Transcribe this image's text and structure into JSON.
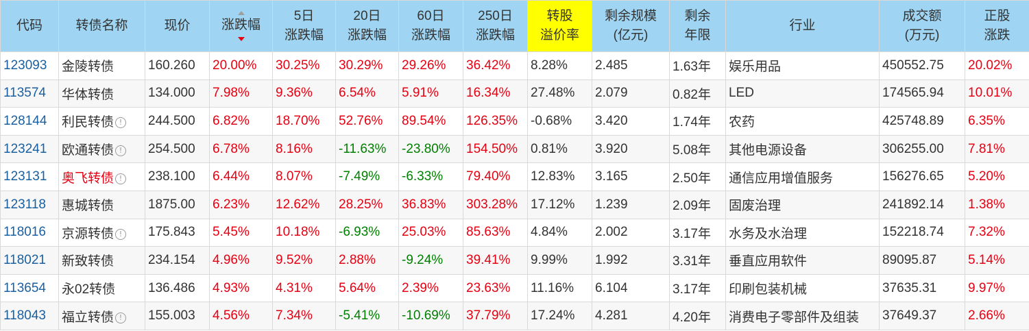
{
  "table": {
    "headers": [
      {
        "key": "code",
        "label": "代码"
      },
      {
        "key": "name",
        "label": "转债名称"
      },
      {
        "key": "price",
        "label": "现价"
      },
      {
        "key": "change",
        "label": "涨跌幅",
        "sorted": "desc"
      },
      {
        "key": "chg5",
        "label": "5日\n涨跌幅"
      },
      {
        "key": "chg20",
        "label": "20日\n涨跌幅"
      },
      {
        "key": "chg60",
        "label": "60日\n涨跌幅"
      },
      {
        "key": "chg250",
        "label": "250日\n涨跌幅"
      },
      {
        "key": "premium",
        "label": "转股\n溢价率",
        "highlight": true
      },
      {
        "key": "remaining_scale",
        "label": "剩余规模\n(亿元)"
      },
      {
        "key": "remaining_years",
        "label": "剩余\n年限"
      },
      {
        "key": "industry",
        "label": "行业"
      },
      {
        "key": "turnover",
        "label": "成交额\n(万元)"
      },
      {
        "key": "stock_change",
        "label": "正股\n涨跌"
      }
    ],
    "rows": [
      {
        "code": "123093",
        "name": "金陵转债",
        "info": false,
        "name_red": false,
        "price": "160.260",
        "change": "20.00%",
        "chg5": "30.25%",
        "chg20": "30.29%",
        "chg60": "29.26%",
        "chg250": "36.42%",
        "premium": "8.28%",
        "remaining_scale": "2.485",
        "remaining_years": "1.63年",
        "industry": "娱乐用品",
        "turnover": "450552.75",
        "stock_change": "20.02%"
      },
      {
        "code": "113574",
        "name": "华体转债",
        "info": false,
        "name_red": false,
        "price": "134.000",
        "change": "7.98%",
        "chg5": "9.36%",
        "chg20": "6.54%",
        "chg60": "5.91%",
        "chg250": "16.34%",
        "premium": "27.48%",
        "remaining_scale": "2.079",
        "remaining_years": "0.82年",
        "industry": "LED",
        "turnover": "174565.94",
        "stock_change": "10.01%"
      },
      {
        "code": "128144",
        "name": "利民转债",
        "info": true,
        "name_red": false,
        "price": "244.500",
        "change": "6.82%",
        "chg5": "18.70%",
        "chg20": "52.76%",
        "chg60": "89.54%",
        "chg250": "126.35%",
        "premium": "-0.68%",
        "remaining_scale": "3.420",
        "remaining_years": "1.74年",
        "industry": "农药",
        "turnover": "425748.89",
        "stock_change": "6.35%"
      },
      {
        "code": "123241",
        "name": "欧通转债",
        "info": true,
        "name_red": false,
        "price": "254.500",
        "change": "6.78%",
        "chg5": "8.16%",
        "chg20": "-11.63%",
        "chg60": "-23.80%",
        "chg250": "154.50%",
        "premium": "0.81%",
        "remaining_scale": "3.920",
        "remaining_years": "5.08年",
        "industry": "其他电源设备",
        "turnover": "306255.00",
        "stock_change": "7.81%"
      },
      {
        "code": "123131",
        "name": "奥飞转债",
        "info": true,
        "name_red": true,
        "price": "238.100",
        "change": "6.44%",
        "chg5": "8.07%",
        "chg20": "-7.49%",
        "chg60": "-6.33%",
        "chg250": "79.40%",
        "premium": "12.83%",
        "remaining_scale": "3.165",
        "remaining_years": "2.50年",
        "industry": "通信应用增值服务",
        "turnover": "156276.65",
        "stock_change": "5.20%"
      },
      {
        "code": "123118",
        "name": "惠城转债",
        "info": false,
        "name_red": false,
        "price": "1875.00",
        "change": "6.23%",
        "chg5": "12.62%",
        "chg20": "28.25%",
        "chg60": "36.83%",
        "chg250": "303.28%",
        "premium": "17.12%",
        "remaining_scale": "1.239",
        "remaining_years": "2.09年",
        "industry": "固废治理",
        "turnover": "241892.14",
        "stock_change": "1.38%"
      },
      {
        "code": "118016",
        "name": "京源转债",
        "info": true,
        "name_red": false,
        "price": "175.843",
        "change": "5.45%",
        "chg5": "10.18%",
        "chg20": "-6.93%",
        "chg60": "25.03%",
        "chg250": "85.63%",
        "premium": "4.84%",
        "remaining_scale": "2.002",
        "remaining_years": "3.17年",
        "industry": "水务及水治理",
        "turnover": "152218.74",
        "stock_change": "7.32%"
      },
      {
        "code": "118021",
        "name": "新致转债",
        "info": false,
        "name_red": false,
        "price": "234.154",
        "change": "4.96%",
        "chg5": "9.52%",
        "chg20": "2.88%",
        "chg60": "-9.24%",
        "chg250": "39.41%",
        "premium": "9.99%",
        "remaining_scale": "1.992",
        "remaining_years": "3.31年",
        "industry": "垂直应用软件",
        "turnover": "89095.87",
        "stock_change": "5.14%"
      },
      {
        "code": "113654",
        "name": "永02转债",
        "info": false,
        "name_red": false,
        "price": "136.486",
        "change": "4.93%",
        "chg5": "4.31%",
        "chg20": "5.64%",
        "chg60": "2.39%",
        "chg250": "23.63%",
        "premium": "11.16%",
        "remaining_scale": "6.104",
        "remaining_years": "3.17年",
        "industry": "印刷包装机械",
        "turnover": "37635.31",
        "stock_change": "9.97%"
      },
      {
        "code": "118043",
        "name": "福立转债",
        "info": true,
        "name_red": false,
        "price": "155.003",
        "change": "4.56%",
        "chg5": "7.34%",
        "chg20": "-5.41%",
        "chg60": "-10.69%",
        "chg250": "37.79%",
        "premium": "17.24%",
        "remaining_scale": "4.281",
        "remaining_years": "4.20年",
        "industry": "消费电子零部件及组装",
        "turnover": "37649.37",
        "stock_change": "2.66%"
      }
    ]
  },
  "icons": {
    "info": "info-circle-icon",
    "sort_up": "sort-asc-icon",
    "sort_down": "sort-desc-icon"
  },
  "colors": {
    "header_bg": "#9fd5f2",
    "highlight_bg": "#ffff00",
    "up": "#e60012",
    "down": "#008000",
    "code": "#1a5fa0",
    "text": "#333333"
  }
}
